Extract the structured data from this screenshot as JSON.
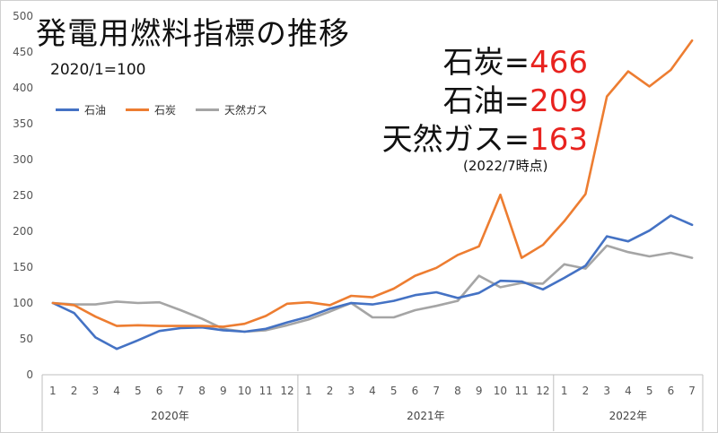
{
  "chart_data": {
    "type": "line",
    "title": "発電用燃料指標の推移",
    "subtitle": "2020/1=100",
    "x_month_labels": [
      "1",
      "2",
      "3",
      "4",
      "5",
      "6",
      "7",
      "8",
      "9",
      "10",
      "11",
      "12",
      "1",
      "2",
      "3",
      "4",
      "5",
      "6",
      "7",
      "8",
      "9",
      "10",
      "11",
      "12",
      "1",
      "2",
      "3",
      "4",
      "5",
      "6",
      "7"
    ],
    "x_year_groups": [
      {
        "label": "2020年",
        "count": 12
      },
      {
        "label": "2021年",
        "count": 12
      },
      {
        "label": "2022年",
        "count": 7
      }
    ],
    "ylim": [
      0,
      500
    ],
    "yticks": [
      0,
      50,
      100,
      150,
      200,
      250,
      300,
      350,
      400,
      450,
      500
    ],
    "grid": false,
    "legend_position": "top-left",
    "series": [
      {
        "name": "石油",
        "color": "#4472c4",
        "values": [
          100,
          86,
          52,
          36,
          48,
          61,
          65,
          66,
          62,
          60,
          64,
          73,
          81,
          92,
          100,
          98,
          103,
          111,
          115,
          107,
          114,
          131,
          130,
          119,
          135,
          152,
          193,
          186,
          201,
          222,
          209
        ]
      },
      {
        "name": "石炭",
        "color": "#ed7d31",
        "values": [
          100,
          97,
          81,
          68,
          69,
          68,
          68,
          68,
          67,
          71,
          82,
          99,
          101,
          97,
          110,
          108,
          120,
          138,
          149,
          167,
          179,
          251,
          163,
          181,
          214,
          252,
          388,
          423,
          402,
          425,
          466
        ]
      },
      {
        "name": "天然ガス",
        "color": "#a5a5a5",
        "values": [
          100,
          98,
          98,
          102,
          100,
          101,
          90,
          78,
          64,
          60,
          62,
          69,
          77,
          88,
          100,
          80,
          80,
          90,
          96,
          103,
          138,
          122,
          128,
          127,
          154,
          148,
          180,
          171,
          165,
          170,
          163
        ]
      }
    ],
    "annotations": [
      {
        "label": "石炭=",
        "value": "466"
      },
      {
        "label": "石油=",
        "value": "209"
      },
      {
        "label": "天然ガス=",
        "value": "163"
      }
    ],
    "annotation_note": "(2022/7時点)"
  }
}
